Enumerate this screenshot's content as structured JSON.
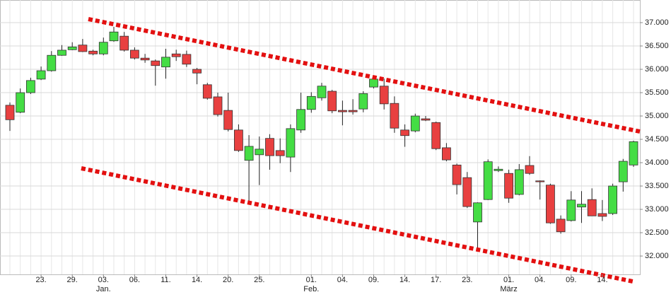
{
  "chart_data": {
    "type": "candlestick",
    "categories": [
      null,
      null,
      null,
      "23.",
      null,
      null,
      "29.",
      null,
      null,
      "03.",
      null,
      null,
      "06.",
      null,
      null,
      "11.",
      null,
      null,
      "14.",
      null,
      null,
      "20.",
      null,
      null,
      "25.",
      null,
      null,
      null,
      null,
      "01.",
      null,
      null,
      "04.",
      null,
      null,
      "09.",
      null,
      null,
      "14.",
      null,
      null,
      "17.",
      null,
      null,
      "23.",
      null,
      null,
      null,
      "01.",
      null,
      null,
      "04.",
      null,
      null,
      "09.",
      null,
      null,
      "14.",
      null,
      null,
      null
    ],
    "months": [
      null,
      null,
      null,
      null,
      null,
      null,
      null,
      null,
      null,
      "Jan.",
      null,
      null,
      null,
      null,
      null,
      null,
      null,
      null,
      null,
      null,
      null,
      null,
      null,
      null,
      null,
      null,
      null,
      null,
      null,
      "Feb.",
      null,
      null,
      null,
      null,
      null,
      null,
      null,
      null,
      null,
      null,
      null,
      null,
      null,
      null,
      null,
      null,
      null,
      null,
      "März",
      null,
      null,
      null,
      null,
      null,
      null,
      null,
      null,
      null,
      null,
      null,
      null
    ],
    "open": [
      35230,
      35080,
      35500,
      35790,
      35970,
      36300,
      36420,
      36520,
      36390,
      36330,
      36610,
      36710,
      36410,
      36240,
      36180,
      36050,
      36330,
      36320,
      36000,
      35670,
      35410,
      35120,
      34700,
      34050,
      34170,
      34520,
      34260,
      34120,
      34700,
      35140,
      35390,
      35530,
      35120,
      35120,
      35150,
      35620,
      35640,
      35270,
      34700,
      34680,
      34940,
      34860,
      34320,
      33950,
      33680,
      32730,
      33210,
      33830,
      33770,
      33320,
      33940,
      33610,
      33520,
      32790,
      32760,
      33050,
      33210,
      32910,
      32910,
      33590,
      33950
    ],
    "high": [
      35290,
      35590,
      35820,
      36060,
      36390,
      36520,
      36580,
      36650,
      36420,
      36680,
      36910,
      36800,
      36470,
      36330,
      36210,
      36440,
      36420,
      36400,
      36030,
      35710,
      35500,
      35500,
      34820,
      34590,
      34560,
      34610,
      34520,
      34820,
      35500,
      35510,
      35710,
      35560,
      35330,
      35360,
      35530,
      35850,
      35800,
      35420,
      34820,
      35050,
      35000,
      34880,
      34420,
      33980,
      33800,
      33150,
      34070,
      33920,
      33850,
      33970,
      34140,
      33620,
      33550,
      32870,
      33390,
      33390,
      33450,
      33200,
      33550,
      34080,
      34470
    ],
    "low": [
      34680,
      35060,
      35470,
      35770,
      35950,
      36290,
      36410,
      36370,
      36300,
      36300,
      36590,
      36380,
      36210,
      36140,
      35650,
      35800,
      36180,
      36050,
      35680,
      35350,
      34990,
      34670,
      34230,
      33140,
      33520,
      33850,
      33990,
      33800,
      34640,
      35070,
      35330,
      35060,
      34800,
      35030,
      35080,
      35590,
      35140,
      34640,
      34340,
      34650,
      34890,
      34270,
      34030,
      33320,
      33030,
      32180,
      33200,
      33800,
      33140,
      33300,
      33740,
      33210,
      32690,
      32480,
      32740,
      32710,
      32860,
      32750,
      32880,
      33380,
      33910
    ],
    "close": [
      34920,
      35500,
      35760,
      35970,
      36300,
      36410,
      36480,
      36380,
      36330,
      36580,
      36800,
      36410,
      36240,
      36200,
      36080,
      36260,
      36270,
      36110,
      35920,
      35380,
      35030,
      34710,
      34260,
      34350,
      34290,
      34150,
      34150,
      34730,
      35140,
      35420,
      35640,
      35110,
      35090,
      35090,
      35480,
      35790,
      35260,
      34740,
      34580,
      35000,
      34910,
      34300,
      34060,
      33530,
      33060,
      33140,
      34020,
      33860,
      33240,
      33850,
      33770,
      33590,
      32710,
      32520,
      33200,
      33110,
      32860,
      32850,
      33500,
      34030,
      34450
    ],
    "up_color": "#44dd44",
    "down_color": "#e84040",
    "ylim": [
      31607,
      37485
    ],
    "yticks": [
      {
        "value": 32000,
        "label": "32.000"
      },
      {
        "value": 32500,
        "label": "32.500"
      },
      {
        "value": 33000,
        "label": "33.000"
      },
      {
        "value": 33500,
        "label": "33.500"
      },
      {
        "value": 34000,
        "label": "34.000"
      },
      {
        "value": 34500,
        "label": "34.500"
      },
      {
        "value": 35000,
        "label": "35.000"
      },
      {
        "value": 35500,
        "label": "35.500"
      },
      {
        "value": 36000,
        "label": "36.000"
      },
      {
        "value": 36500,
        "label": "36.500"
      },
      {
        "value": 37000,
        "label": "37.000"
      }
    ],
    "grid": true
  }
}
